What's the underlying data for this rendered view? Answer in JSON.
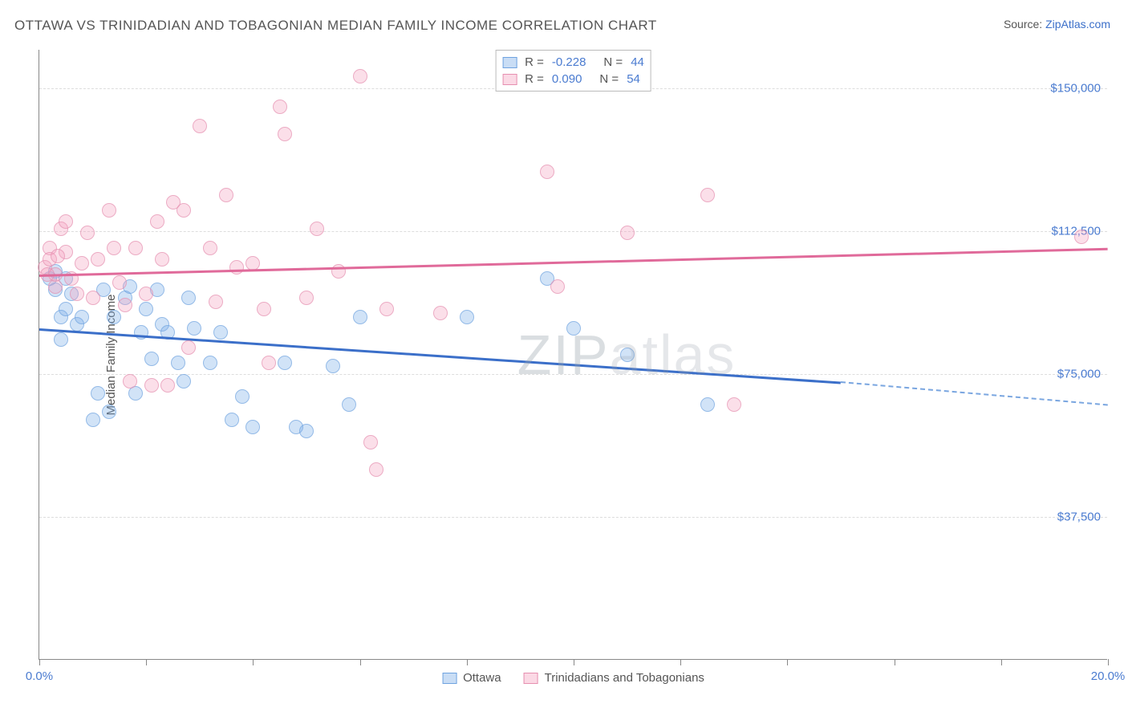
{
  "title": "OTTAWA VS TRINIDADIAN AND TOBAGONIAN MEDIAN FAMILY INCOME CORRELATION CHART",
  "source_prefix": "Source: ",
  "source_name": "ZipAtlas.com",
  "y_axis_label": "Median Family Income",
  "watermark_bold": "ZIP",
  "watermark_thin": "atlas",
  "chart": {
    "type": "scatter",
    "xlim": [
      0,
      20
    ],
    "ylim": [
      0,
      160000
    ],
    "x_tick_positions": [
      0,
      2,
      4,
      6,
      8,
      10,
      12,
      14,
      16,
      18,
      20
    ],
    "x_tick_labels": {
      "0": "0.0%",
      "20": "20.0%"
    },
    "y_gridlines": [
      37500,
      75000,
      112500,
      150000
    ],
    "y_tick_labels": {
      "37500": "$37,500",
      "75000": "$75,000",
      "112500": "$112,500",
      "150000": "$150,000"
    },
    "background_color": "#ffffff",
    "grid_color": "#dddddd",
    "axis_color": "#888888",
    "label_color": "#4a7bd0",
    "marker_radius": 9,
    "series": [
      {
        "name": "Ottawa",
        "color_fill": "rgba(120,170,230,0.45)",
        "color_stroke": "#6fa3e0",
        "trend_color": "#3b6fc9",
        "R": "-0.228",
        "N": "44",
        "trend": {
          "x1": 0,
          "y1": 87000,
          "x2": 15,
          "y2": 73000,
          "extend_x2": 20,
          "extend_y2": 67000
        },
        "points": [
          [
            0.2,
            100000
          ],
          [
            0.3,
            97000
          ],
          [
            0.3,
            102000
          ],
          [
            0.4,
            90000
          ],
          [
            0.5,
            100000
          ],
          [
            0.5,
            92000
          ],
          [
            0.6,
            96000
          ],
          [
            0.7,
            88000
          ],
          [
            0.8,
            90000
          ],
          [
            1.0,
            63000
          ],
          [
            1.1,
            70000
          ],
          [
            1.2,
            97000
          ],
          [
            1.3,
            65000
          ],
          [
            1.4,
            90000
          ],
          [
            1.6,
            95000
          ],
          [
            1.7,
            98000
          ],
          [
            1.8,
            70000
          ],
          [
            1.9,
            86000
          ],
          [
            2.0,
            92000
          ],
          [
            2.1,
            79000
          ],
          [
            2.2,
            97000
          ],
          [
            2.3,
            88000
          ],
          [
            2.4,
            86000
          ],
          [
            2.6,
            78000
          ],
          [
            2.7,
            73000
          ],
          [
            2.8,
            95000
          ],
          [
            2.9,
            87000
          ],
          [
            3.2,
            78000
          ],
          [
            3.4,
            86000
          ],
          [
            3.6,
            63000
          ],
          [
            3.8,
            69000
          ],
          [
            4.0,
            61000
          ],
          [
            4.6,
            78000
          ],
          [
            4.8,
            61000
          ],
          [
            5.0,
            60000
          ],
          [
            5.5,
            77000
          ],
          [
            5.8,
            67000
          ],
          [
            6.0,
            90000
          ],
          [
            8.0,
            90000
          ],
          [
            9.5,
            100000
          ],
          [
            10.0,
            87000
          ],
          [
            11.0,
            80000
          ],
          [
            12.5,
            67000
          ],
          [
            0.4,
            84000
          ]
        ]
      },
      {
        "name": "Trinidadians and Tobagonians",
        "color_fill": "rgba(245,160,190,0.45)",
        "color_stroke": "#e68fb0",
        "trend_color": "#e06a9a",
        "R": "0.090",
        "N": "54",
        "trend": {
          "x1": 0,
          "y1": 101000,
          "x2": 20,
          "y2": 108000
        },
        "points": [
          [
            0.1,
            103000
          ],
          [
            0.2,
            108000
          ],
          [
            0.2,
            105000
          ],
          [
            0.3,
            98000
          ],
          [
            0.3,
            101000
          ],
          [
            0.4,
            113000
          ],
          [
            0.5,
            107000
          ],
          [
            0.5,
            115000
          ],
          [
            0.6,
            100000
          ],
          [
            0.7,
            96000
          ],
          [
            0.8,
            104000
          ],
          [
            0.9,
            112000
          ],
          [
            1.0,
            95000
          ],
          [
            1.1,
            105000
          ],
          [
            1.3,
            118000
          ],
          [
            1.4,
            108000
          ],
          [
            1.5,
            99000
          ],
          [
            1.6,
            93000
          ],
          [
            1.7,
            73000
          ],
          [
            1.8,
            108000
          ],
          [
            2.0,
            96000
          ],
          [
            2.1,
            72000
          ],
          [
            2.2,
            115000
          ],
          [
            2.3,
            105000
          ],
          [
            2.4,
            72000
          ],
          [
            2.5,
            120000
          ],
          [
            2.7,
            118000
          ],
          [
            2.8,
            82000
          ],
          [
            3.0,
            140000
          ],
          [
            3.2,
            108000
          ],
          [
            3.3,
            94000
          ],
          [
            3.5,
            122000
          ],
          [
            3.7,
            103000
          ],
          [
            4.0,
            104000
          ],
          [
            4.2,
            92000
          ],
          [
            4.3,
            78000
          ],
          [
            4.5,
            145000
          ],
          [
            4.6,
            138000
          ],
          [
            5.0,
            95000
          ],
          [
            5.2,
            113000
          ],
          [
            5.6,
            102000
          ],
          [
            6.0,
            153000
          ],
          [
            6.2,
            57000
          ],
          [
            6.3,
            50000
          ],
          [
            6.5,
            92000
          ],
          [
            7.5,
            91000
          ],
          [
            9.5,
            128000
          ],
          [
            9.7,
            98000
          ],
          [
            11.0,
            112000
          ],
          [
            12.5,
            122000
          ],
          [
            13.0,
            67000
          ],
          [
            19.5,
            111000
          ],
          [
            0.15,
            101000
          ],
          [
            0.35,
            106000
          ]
        ]
      }
    ]
  },
  "stats_legend": {
    "r_label": "R",
    "n_label": "N",
    "equals": "="
  },
  "bottom_legend": {
    "items": [
      "Ottawa",
      "Trinidadians and Tobagonians"
    ]
  }
}
